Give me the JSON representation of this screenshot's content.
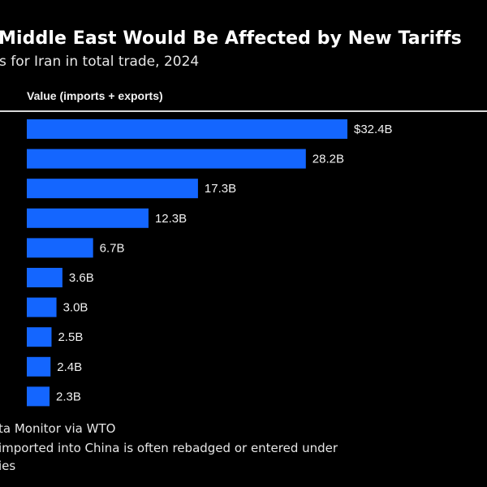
{
  "title": "Middle East Would Be Affected by New Tariffs",
  "subtitle": "s for Iran in total trade, 2024",
  "footer": {
    "source": "ta Monitor via WTO",
    "note_line1": " imported into China is often rebadged or entered under",
    "note_line2": "ies"
  },
  "chart_data": {
    "type": "bar",
    "orientation": "horizontal",
    "column_label": "Value (imports + exports)",
    "values": [
      32.4,
      28.2,
      17.3,
      12.3,
      6.7,
      3.6,
      3.0,
      2.5,
      2.4,
      2.3
    ],
    "data_labels": [
      "$32.4B",
      "28.2B",
      "17.3B",
      "12.3B",
      "6.7B",
      "3.6B",
      "3.0B",
      "2.5B",
      "2.4B",
      "2.3B"
    ],
    "unit": "billion USD",
    "bar_color": "#1466ff",
    "grid": false
  }
}
